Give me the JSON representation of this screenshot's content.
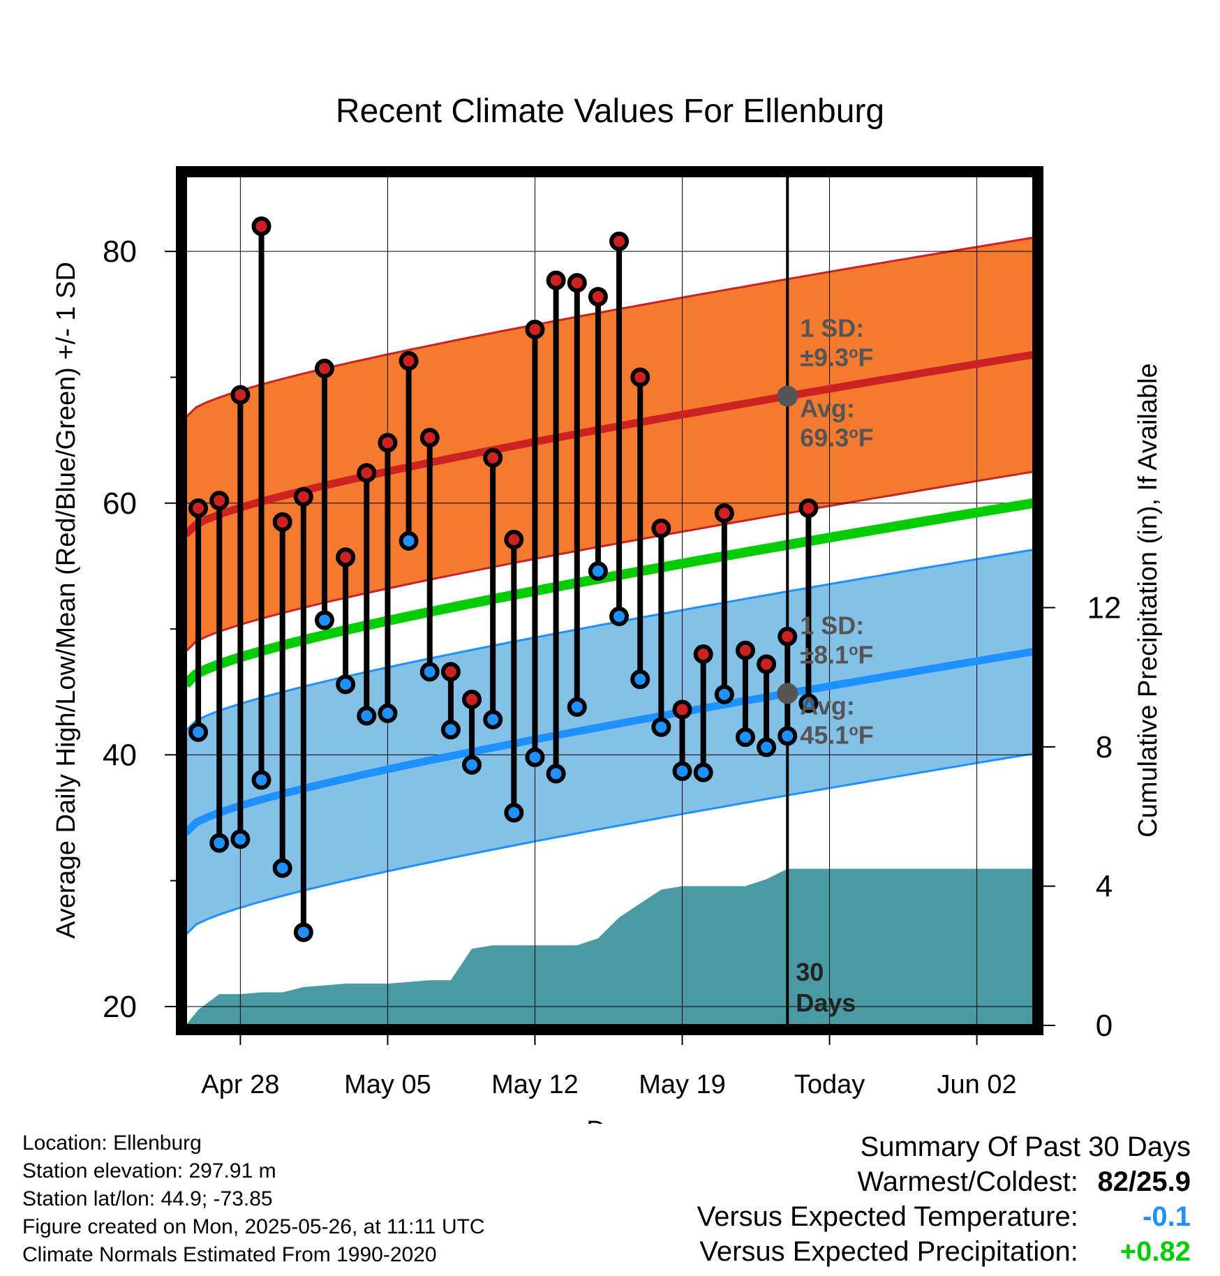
{
  "chart_data": {
    "type": "line",
    "title": "Recent Climate Values For Ellenburg",
    "xlabel": "Day",
    "ylabel": "Average Daily High/Low/Mean (Red/Blue/Green) +/- 1 SD",
    "y2label": "Cumulative Precipitation (in), If Available",
    "x_tick_labels": [
      "Apr 28",
      "May 05",
      "May 12",
      "May 19",
      "Today",
      "Jun 02"
    ],
    "y_ticks": [
      "20",
      "40",
      "60",
      "80"
    ],
    "y2_ticks": [
      "0",
      "4",
      "8",
      "12"
    ],
    "ylim": [
      18.5,
      86
    ],
    "y2lim": [
      0,
      24.4
    ],
    "grid": true,
    "high_avg": {
      "start": 57.5,
      "end": 71.8,
      "today": "69.3"
    },
    "low_avg": {
      "start": 33.8,
      "end": 48.2,
      "today": "45.1"
    },
    "mean_avg": {
      "start": 45.6,
      "end": 60.0
    },
    "high_sd": "9.3",
    "low_sd": "8.1",
    "today_day": 28,
    "sd_label": "1 SD:",
    "avg_label": "Avg:",
    "days_label": [
      "30",
      "Days"
    ],
    "days": [
      {
        "day": 0,
        "high": 59.6,
        "low": 41.8
      },
      {
        "day": 1,
        "high": 60.2,
        "low": 33.0
      },
      {
        "day": 2,
        "high": 68.6,
        "low": 33.3
      },
      {
        "day": 3,
        "high": 82.0,
        "low": 38.0
      },
      {
        "day": 4,
        "high": 58.5,
        "low": 31.0
      },
      {
        "day": 5,
        "high": 60.5,
        "low": 25.9
      },
      {
        "day": 6,
        "high": 70.7,
        "low": 50.7
      },
      {
        "day": 7,
        "high": 55.7,
        "low": 45.6
      },
      {
        "day": 8,
        "high": 62.4,
        "low": 43.1
      },
      {
        "day": 9,
        "high": 64.8,
        "low": 43.3
      },
      {
        "day": 10,
        "high": 71.3,
        "low": 57.0
      },
      {
        "day": 11,
        "high": 65.2,
        "low": 46.6
      },
      {
        "day": 12,
        "high": 46.6,
        "low": 42.0
      },
      {
        "day": 13,
        "high": 44.4,
        "low": 39.2
      },
      {
        "day": 14,
        "high": 63.6,
        "low": 42.8
      },
      {
        "day": 15,
        "high": 57.1,
        "low": 35.4
      },
      {
        "day": 16,
        "high": 73.8,
        "low": 39.8
      },
      {
        "day": 17,
        "high": 77.7,
        "low": 38.5
      },
      {
        "day": 18,
        "high": 77.5,
        "low": 43.8
      },
      {
        "day": 19,
        "high": 76.4,
        "low": 54.6
      },
      {
        "day": 20,
        "high": 80.8,
        "low": 51.0
      },
      {
        "day": 21,
        "high": 70.0,
        "low": 46.0
      },
      {
        "day": 22,
        "high": 58.0,
        "low": 42.2
      },
      {
        "day": 23,
        "high": 43.6,
        "low": 38.7
      },
      {
        "day": 24,
        "high": 48.0,
        "low": 38.6
      },
      {
        "day": 25,
        "high": 59.2,
        "low": 44.8
      },
      {
        "day": 26,
        "high": 48.3,
        "low": 41.4
      },
      {
        "day": 27,
        "high": 47.2,
        "low": 40.6
      },
      {
        "day": 28,
        "high": 49.4,
        "low": 41.5
      },
      {
        "day": 29,
        "high": 59.6,
        "low": 44.1
      }
    ],
    "precip": [
      {
        "day": -0.6,
        "value": 0.0
      },
      {
        "day": 0.0,
        "value": 0.45
      },
      {
        "day": 1.0,
        "value": 0.9
      },
      {
        "day": 2.0,
        "value": 0.9
      },
      {
        "day": 3.0,
        "value": 0.95
      },
      {
        "day": 4.0,
        "value": 0.95
      },
      {
        "day": 5.0,
        "value": 1.1
      },
      {
        "day": 6.0,
        "value": 1.15
      },
      {
        "day": 7.0,
        "value": 1.2
      },
      {
        "day": 8.0,
        "value": 1.2
      },
      {
        "day": 9.0,
        "value": 1.2
      },
      {
        "day": 10.0,
        "value": 1.25
      },
      {
        "day": 11.0,
        "value": 1.3
      },
      {
        "day": 12.0,
        "value": 1.3
      },
      {
        "day": 13.0,
        "value": 2.2
      },
      {
        "day": 14.0,
        "value": 2.3
      },
      {
        "day": 15.0,
        "value": 2.3
      },
      {
        "day": 16.0,
        "value": 2.3
      },
      {
        "day": 17.0,
        "value": 2.3
      },
      {
        "day": 18.0,
        "value": 2.3
      },
      {
        "day": 19.0,
        "value": 2.5
      },
      {
        "day": 20.0,
        "value": 3.1
      },
      {
        "day": 21.0,
        "value": 3.5
      },
      {
        "day": 22.0,
        "value": 3.9
      },
      {
        "day": 23.0,
        "value": 4.0
      },
      {
        "day": 24.0,
        "value": 4.0
      },
      {
        "day": 25.0,
        "value": 4.0
      },
      {
        "day": 26.0,
        "value": 4.0
      },
      {
        "day": 27.0,
        "value": 4.2
      },
      {
        "day": 28.0,
        "value": 4.5
      },
      {
        "day": 29.0,
        "value": 4.5
      },
      {
        "day": 30.0,
        "value": 4.5
      },
      {
        "day": 39.7,
        "value": 4.5
      }
    ],
    "colors": {
      "high_band": "#f47a30",
      "high_line": "#cc2222",
      "low_band": "#84c1e6",
      "low_line": "#1e90ff",
      "mean_line": "#00cc00",
      "precip": "#4a9aa3",
      "high_dot": "#cc2222",
      "low_dot": "#1e90ff",
      "annot": "#555555"
    }
  },
  "footer": {
    "location": "Location: Ellenburg",
    "elevation": "Station elevation: 297.91 m",
    "latlon": "Station lat/lon: 44.9; -73.85",
    "created": "Figure created on Mon, 2025-05-26, at 11:11 UTC",
    "normals": "Climate Normals Estimated From 1990-2020"
  },
  "summary": {
    "heading": "Summary Of Past 30 Days",
    "warm_cold_label": "Warmest/Coldest:",
    "warm_cold_value": "82/25.9",
    "temp_label": "Versus Expected Temperature:",
    "temp_value": "-0.1",
    "temp_color": "#1e90ff",
    "precip_label": "Versus Expected Precipitation:",
    "precip_value": "+0.82",
    "precip_color": "#00cc00"
  }
}
